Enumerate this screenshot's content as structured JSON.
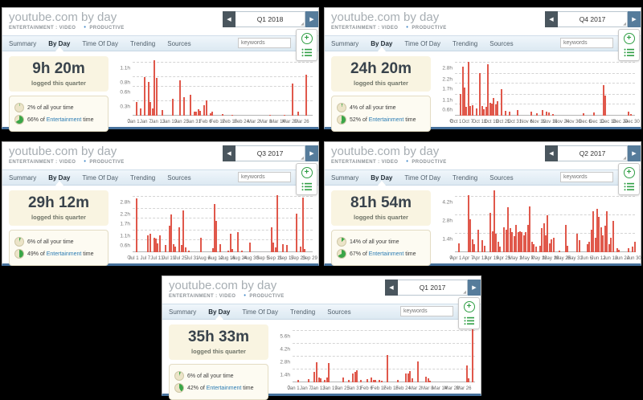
{
  "colors": {
    "bar_red": "#e0584b",
    "accent_green": "#2f9e44",
    "link_blue": "#2b7cb3",
    "panel_bottom_blue": "#46719c",
    "pie_fill": "#3aa648",
    "pie_empty": "#ece4c8"
  },
  "panels": [
    {
      "title": "youtube.com by day",
      "category": "ENTERTAINMENT : VIDEO",
      "productivity_dot": "•",
      "productivity": "PRODUCTIVE",
      "quarter": "Q1 2018",
      "prev_arrow": "◀",
      "next_arrow": "▶",
      "tabs": [
        "Summary",
        "By Day",
        "Time Of Day",
        "Trending",
        "Sources"
      ],
      "active_tab": "By Day",
      "keywords_placeholder": "keywords",
      "stats": {
        "total": "9h 20m",
        "caption": "logged this quarter",
        "all_pct": 2,
        "all_label": "2% of all your time",
        "ent_pct": 66,
        "ent_prefix": "66% of",
        "ent_link": "Entertainment",
        "ent_suffix": "time"
      },
      "chart_data": {
        "type": "bar",
        "ylabel": "hours",
        "ymax": 1.1,
        "days": 90,
        "xtick_step": 6,
        "yticks": [
          [
            1.1,
            "1.1h"
          ],
          [
            0.8,
            "0.8h"
          ],
          [
            0.6,
            "0.6h"
          ],
          [
            0.3,
            "0.3h"
          ],
          [
            0,
            "0"
          ]
        ],
        "xticks": [
          "Jan 1",
          "Jan 7",
          "Jan 13",
          "Jan 19",
          "Jan 25",
          "Jan 31",
          "Feb 6",
          "Feb 12",
          "Feb 18",
          "Feb 24",
          "Mar 2",
          "Mar 8",
          "Mar 14",
          "Mar 20",
          "Mar 26"
        ],
        "points": [
          [
            1,
            0.28
          ],
          [
            3,
            0.15
          ],
          [
            5,
            0.8
          ],
          [
            7,
            0.7
          ],
          [
            8,
            0.28
          ],
          [
            9,
            0.15
          ],
          [
            10,
            1.15
          ],
          [
            11,
            0.78
          ],
          [
            14,
            0.12
          ],
          [
            19,
            0.35
          ],
          [
            23,
            0.73
          ],
          [
            25,
            0.38
          ],
          [
            28,
            0.43
          ],
          [
            30,
            0.08
          ],
          [
            31,
            0.09
          ],
          [
            32,
            0.13
          ],
          [
            33,
            0.1
          ],
          [
            35,
            0.22
          ],
          [
            36,
            0.31
          ],
          [
            38,
            0.05
          ],
          [
            39,
            0.08
          ],
          [
            44,
            0.03
          ],
          [
            49,
            0.02
          ],
          [
            68,
            0.02
          ],
          [
            75,
            0.02
          ],
          [
            79,
            0.67
          ],
          [
            82,
            0.08
          ],
          [
            86,
            0.85
          ]
        ]
      }
    },
    {
      "title": "youtube.com by day",
      "category": "ENTERTAINMENT : VIDEO",
      "productivity_dot": "•",
      "productivity": "PRODUCTIVE",
      "quarter": "Q4 2017",
      "prev_arrow": "◀",
      "next_arrow": "▶",
      "tabs": [
        "Summary",
        "By Day",
        "Time Of Day",
        "Trending",
        "Sources"
      ],
      "active_tab": "By Day",
      "keywords_placeholder": "keywords",
      "stats": {
        "total": "24h 20m",
        "caption": "logged this quarter",
        "all_pct": 4,
        "all_label": "4% of all your time",
        "ent_pct": 52,
        "ent_prefix": "52% of",
        "ent_link": "Entertainment",
        "ent_suffix": "time"
      },
      "chart_data": {
        "type": "bar",
        "ylabel": "hours",
        "ymax": 2.8,
        "days": 92,
        "xtick_step": 6,
        "yticks": [
          [
            2.8,
            "2.8h"
          ],
          [
            2.2,
            "2.2h"
          ],
          [
            1.7,
            "1.7h"
          ],
          [
            1.1,
            "1.1h"
          ],
          [
            0.6,
            "0.6h"
          ],
          [
            0,
            "0"
          ]
        ],
        "xticks": [
          "Oct 1",
          "Oct 7",
          "Oct 13",
          "Oct 19",
          "Oct 25",
          "Oct 31",
          "Nov 6",
          "Nov 12",
          "Nov 18",
          "Nov 24",
          "Nov 30",
          "Dec 6",
          "Dec 12",
          "Dec 18",
          "Dec 24",
          "Dec 30"
        ],
        "points": [
          [
            2,
            1.15
          ],
          [
            3,
            2.6
          ],
          [
            4,
            1.5
          ],
          [
            5,
            0.45
          ],
          [
            6,
            2.85
          ],
          [
            7,
            0.5
          ],
          [
            8,
            0.55
          ],
          [
            10,
            0.4
          ],
          [
            12,
            2.25
          ],
          [
            13,
            0.5
          ],
          [
            14,
            0.35
          ],
          [
            15,
            0.45
          ],
          [
            16,
            2.7
          ],
          [
            17,
            0.7
          ],
          [
            18,
            0.65
          ],
          [
            19,
            0.95
          ],
          [
            20,
            0.6
          ],
          [
            21,
            0.75
          ],
          [
            23,
            1.4
          ],
          [
            25,
            0.25
          ],
          [
            27,
            0.2
          ],
          [
            31,
            0.3
          ],
          [
            38,
            0.2
          ],
          [
            41,
            0.12
          ],
          [
            44,
            0.28
          ],
          [
            46,
            0.2
          ],
          [
            47,
            0.15
          ],
          [
            49,
            0.1
          ],
          [
            65,
            0.12
          ],
          [
            70,
            0.15
          ],
          [
            75,
            1.6
          ],
          [
            76,
            1.05
          ],
          [
            88,
            0.2
          ],
          [
            89,
            0.1
          ]
        ]
      }
    },
    {
      "title": "youtube.com by day",
      "category": "ENTERTAINMENT : VIDEO",
      "productivity_dot": "•",
      "productivity": "PRODUCTIVE",
      "quarter": "Q3 2017",
      "prev_arrow": "◀",
      "next_arrow": "▶",
      "tabs": [
        "Summary",
        "By Day",
        "Time Of Day",
        "Trending",
        "Sources"
      ],
      "active_tab": "By Day",
      "keywords_placeholder": "keywords",
      "stats": {
        "total": "29h 12m",
        "caption": "logged this quarter",
        "all_pct": 6,
        "all_label": "6% of all your time",
        "ent_pct": 49,
        "ent_prefix": "49% of",
        "ent_link": "Entertainment",
        "ent_suffix": "time"
      },
      "chart_data": {
        "type": "bar",
        "ylabel": "hours",
        "ymax": 2.8,
        "days": 92,
        "xtick_step": 6,
        "yticks": [
          [
            2.8,
            "2.8h"
          ],
          [
            2.2,
            "2.2h"
          ],
          [
            1.7,
            "1.7h"
          ],
          [
            1.1,
            "1.1h"
          ],
          [
            0.6,
            "0.6h"
          ],
          [
            0,
            "0"
          ]
        ],
        "xticks": [
          "Jul 1",
          "Jul 7",
          "Jul 13",
          "Jul 19",
          "Jul 25",
          "Jul 31",
          "Aug 6",
          "Aug 12",
          "Aug 18",
          "Aug 24",
          "Aug 30",
          "Sep 5",
          "Sep 11",
          "Sep 17",
          "Sep 23",
          "Sep 29"
        ],
        "points": [
          [
            1,
            2.7
          ],
          [
            7,
            0.85
          ],
          [
            8,
            0.95
          ],
          [
            10,
            0.75
          ],
          [
            11,
            0.7
          ],
          [
            12,
            0.45
          ],
          [
            13,
            0.85
          ],
          [
            16,
            0.35
          ],
          [
            18,
            1.35
          ],
          [
            19,
            1.9
          ],
          [
            20,
            0.4
          ],
          [
            21,
            0.3
          ],
          [
            23,
            1.25
          ],
          [
            24,
            0.35
          ],
          [
            25,
            2.1
          ],
          [
            26,
            0.25
          ],
          [
            28,
            0.1
          ],
          [
            34,
            0.75
          ],
          [
            40,
            0.2
          ],
          [
            41,
            2.45
          ],
          [
            42,
            1.6
          ],
          [
            44,
            0.4
          ],
          [
            48,
            0.1
          ],
          [
            49,
            0.95
          ],
          [
            50,
            0.15
          ],
          [
            53,
            1.0
          ],
          [
            55,
            0.1
          ],
          [
            59,
            0.5
          ],
          [
            70,
            1.25
          ],
          [
            71,
            0.5
          ],
          [
            72,
            0.25
          ],
          [
            73,
            2.9
          ],
          [
            76,
            0.4
          ],
          [
            78,
            0.35
          ],
          [
            83,
            1.95
          ],
          [
            85,
            0.3
          ],
          [
            86,
            2.75
          ],
          [
            87,
            0.15
          ]
        ]
      }
    },
    {
      "title": "youtube.com by day",
      "category": "ENTERTAINMENT : VIDEO",
      "productivity_dot": "•",
      "productivity": "PRODUCTIVE",
      "quarter": "Q2 2017",
      "prev_arrow": "◀",
      "next_arrow": "▶",
      "tabs": [
        "Summary",
        "By Day",
        "Time Of Day",
        "Trending",
        "Sources"
      ],
      "active_tab": "By Day",
      "keywords_placeholder": "keywords",
      "stats": {
        "total": "81h 54m",
        "caption": "logged this quarter",
        "all_pct": 14,
        "all_label": "14% of all your time",
        "ent_pct": 67,
        "ent_prefix": "67% of",
        "ent_link": "Entertainment",
        "ent_suffix": "time"
      },
      "chart_data": {
        "type": "bar",
        "ylabel": "hours",
        "ymax": 4.2,
        "days": 91,
        "xtick_step": 6,
        "yticks": [
          [
            4.2,
            "4.2h"
          ],
          [
            2.8,
            "2.8h"
          ],
          [
            1.4,
            "1.4h"
          ],
          [
            0,
            "0"
          ]
        ],
        "xticks": [
          "Apr 1",
          "Apr 7",
          "Apr 13",
          "Apr 19",
          "Apr 25",
          "May 1",
          "May 7",
          "May 13",
          "May 19",
          "May 25",
          "May 31",
          "Jun 6",
          "Jun 12",
          "Jun 18",
          "Jun 24",
          "Jun 30"
        ],
        "points": [
          [
            1,
            0.7
          ],
          [
            6,
            4.3
          ],
          [
            7,
            2.5
          ],
          [
            8,
            1.0
          ],
          [
            9,
            0.6
          ],
          [
            11,
            1.7
          ],
          [
            13,
            0.9
          ],
          [
            14,
            0.5
          ],
          [
            17,
            3.0
          ],
          [
            18,
            1.6
          ],
          [
            19,
            4.8
          ],
          [
            20,
            1.4
          ],
          [
            21,
            0.8
          ],
          [
            22,
            0.4
          ],
          [
            24,
            1.9
          ],
          [
            25,
            1.7
          ],
          [
            26,
            3.4
          ],
          [
            27,
            1.8
          ],
          [
            28,
            1.5
          ],
          [
            29,
            1.2
          ],
          [
            30,
            2.1
          ],
          [
            31,
            1.5
          ],
          [
            32,
            1.6
          ],
          [
            33,
            1.5
          ],
          [
            34,
            1.3
          ],
          [
            35,
            1.5
          ],
          [
            36,
            2.1
          ],
          [
            37,
            3.5
          ],
          [
            38,
            0.8
          ],
          [
            39,
            0.6
          ],
          [
            40,
            0.4
          ],
          [
            42,
            0.5
          ],
          [
            43,
            1.8
          ],
          [
            44,
            2.2
          ],
          [
            45,
            1.3
          ],
          [
            46,
            2.8
          ],
          [
            47,
            0.7
          ],
          [
            48,
            1.0
          ],
          [
            49,
            1.1
          ],
          [
            52,
            0.15
          ],
          [
            55,
            2.1
          ],
          [
            56,
            0.5
          ],
          [
            61,
            1.4
          ],
          [
            62,
            0.9
          ],
          [
            66,
            0.6
          ],
          [
            67,
            0.8
          ],
          [
            68,
            1.7
          ],
          [
            69,
            3.1
          ],
          [
            70,
            1.1
          ],
          [
            71,
            3.3
          ],
          [
            72,
            2.7
          ],
          [
            73,
            1.9
          ],
          [
            74,
            1.3
          ],
          [
            75,
            2.0
          ],
          [
            76,
            3.1
          ],
          [
            77,
            0.6
          ],
          [
            78,
            1.1
          ],
          [
            79,
            2.4
          ],
          [
            81,
            0.3
          ],
          [
            82,
            0.2
          ],
          [
            87,
            0.3
          ],
          [
            89,
            0.4
          ],
          [
            90,
            0.8
          ]
        ]
      }
    },
    {
      "title": "youtube.com by day",
      "category": "ENTERTAINMENT : VIDEO",
      "productivity_dot": "•",
      "productivity": "PRODUCTIVE",
      "quarter": "Q1 2017",
      "prev_arrow": "◀",
      "next_arrow": "▶",
      "tabs": [
        "Summary",
        "By Day",
        "Time Of Day",
        "Trending",
        "Sources"
      ],
      "active_tab": "By Day",
      "keywords_placeholder": "keywords",
      "stats": {
        "total": "35h 33m",
        "caption": "logged this quarter",
        "all_pct": 6,
        "all_label": "6% of all your time",
        "ent_pct": 42,
        "ent_prefix": "42% of",
        "ent_link": "Entertainment",
        "ent_suffix": "time"
      },
      "chart_data": {
        "type": "bar",
        "ylabel": "hours",
        "ymax": 5.6,
        "days": 90,
        "xtick_step": 6,
        "yticks": [
          [
            5.6,
            "5.6h"
          ],
          [
            4.2,
            "4.2h"
          ],
          [
            2.8,
            "2.8h"
          ],
          [
            1.4,
            "1.4h"
          ],
          [
            0,
            "0"
          ]
        ],
        "xticks": [
          "Jan 1",
          "Jan 7",
          "Jan 13",
          "Jan 19",
          "Jan 25",
          "Jan 31",
          "Feb 6",
          "Feb 12",
          "Feb 18",
          "Feb 24",
          "Mar 2",
          "Mar 8",
          "Mar 14",
          "Mar 20",
          "Mar 26"
        ],
        "points": [
          [
            2,
            0.3
          ],
          [
            7,
            0.35
          ],
          [
            10,
            1.1
          ],
          [
            11,
            2.2
          ],
          [
            12,
            0.5
          ],
          [
            13,
            0.4
          ],
          [
            15,
            0.3
          ],
          [
            16,
            0.5
          ],
          [
            17,
            2.1
          ],
          [
            24,
            0.5
          ],
          [
            27,
            0.3
          ],
          [
            29,
            1.0
          ],
          [
            30,
            1.1
          ],
          [
            31,
            1.3
          ],
          [
            33,
            0.3
          ],
          [
            36,
            0.35
          ],
          [
            38,
            0.5
          ],
          [
            39,
            0.3
          ],
          [
            40,
            0.3
          ],
          [
            42,
            0.25
          ],
          [
            43,
            0.2
          ],
          [
            46,
            3.0
          ],
          [
            51,
            0.3
          ],
          [
            55,
            1.0
          ],
          [
            56,
            1.0
          ],
          [
            57,
            1.2
          ],
          [
            58,
            0.4
          ],
          [
            61,
            2.3
          ],
          [
            65,
            0.6
          ],
          [
            66,
            0.4
          ],
          [
            67,
            0.2
          ],
          [
            85,
            1.8
          ],
          [
            86,
            0.4
          ],
          [
            88,
            5.9
          ]
        ]
      }
    }
  ]
}
